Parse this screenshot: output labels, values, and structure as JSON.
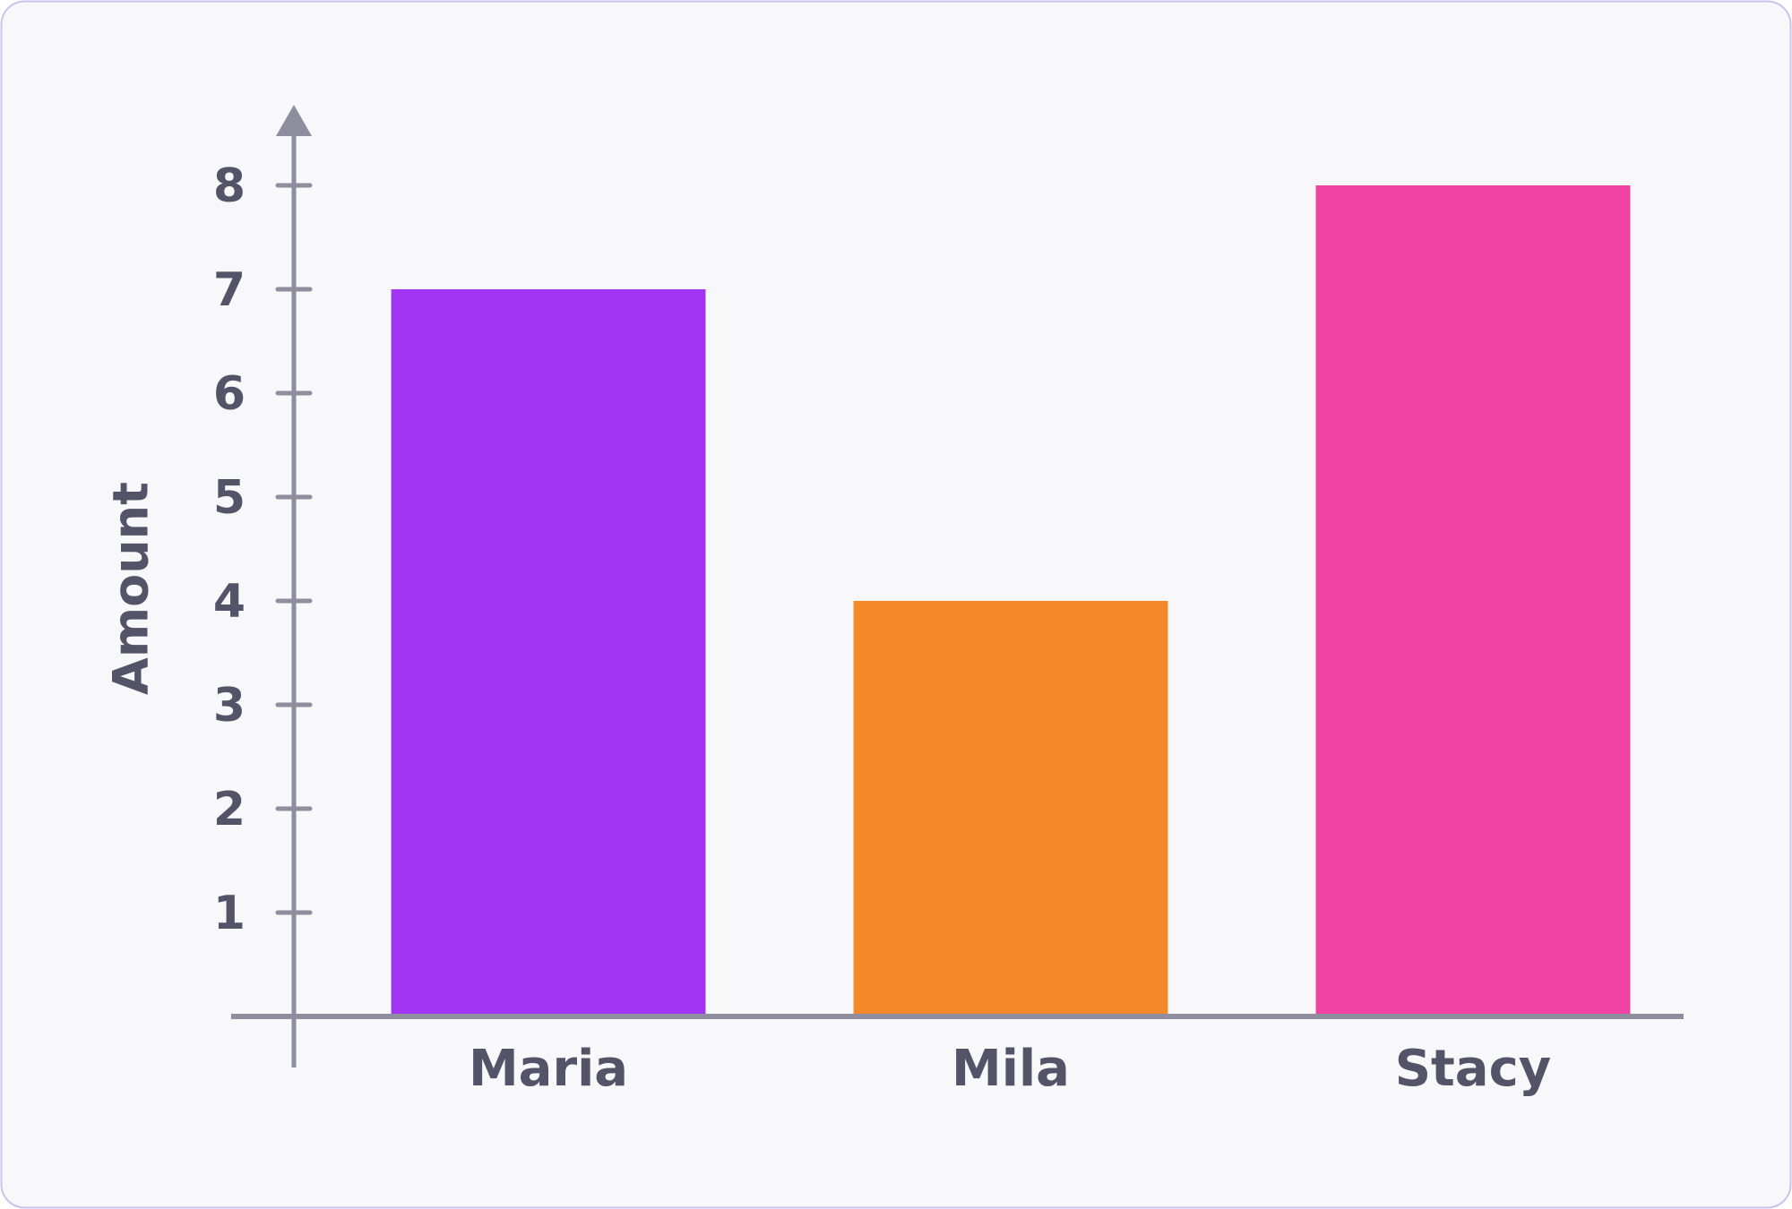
{
  "chart_data": {
    "type": "bar",
    "y_label": "Amount",
    "categories": [
      "Maria",
      "Mila",
      "Stacy"
    ],
    "values": [
      7,
      4,
      8
    ],
    "colors": [
      "#a235f3",
      "#f3892a",
      "#f042a2"
    ],
    "ylim": [
      0,
      8.5
    ],
    "yticks": [
      1,
      2,
      3,
      4,
      5,
      6,
      7,
      8
    ]
  }
}
